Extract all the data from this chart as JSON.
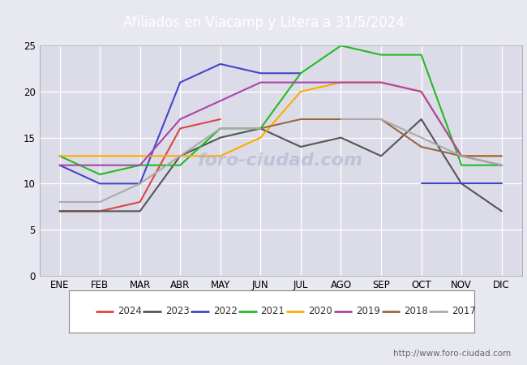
{
  "title": "Afiliados en Viacamp y Litera a 31/5/2024",
  "months": [
    "ENE",
    "FEB",
    "MAR",
    "ABR",
    "MAY",
    "JUN",
    "JUL",
    "AGO",
    "SEP",
    "OCT",
    "NOV",
    "DIC"
  ],
  "ylim": [
    0,
    25
  ],
  "yticks": [
    0,
    5,
    10,
    15,
    20,
    25
  ],
  "series": {
    "2024": {
      "color": "#dd4444",
      "data": [
        7,
        7,
        8,
        16,
        17,
        null,
        null,
        null,
        null,
        null,
        null,
        null
      ]
    },
    "2023": {
      "color": "#555555",
      "data": [
        7,
        7,
        7,
        13,
        15,
        16,
        14,
        15,
        13,
        17,
        10,
        7
      ]
    },
    "2022": {
      "color": "#4444cc",
      "data": [
        12,
        10,
        10,
        21,
        23,
        22,
        22,
        null,
        null,
        10,
        10,
        10
      ]
    },
    "2021": {
      "color": "#22bb22",
      "data": [
        13,
        11,
        12,
        12,
        16,
        16,
        22,
        25,
        24,
        24,
        12,
        12
      ]
    },
    "2020": {
      "color": "#ffaa00",
      "data": [
        13,
        13,
        13,
        13,
        13,
        15,
        20,
        21,
        21,
        20,
        13,
        13
      ]
    },
    "2019": {
      "color": "#aa44aa",
      "data": [
        12,
        12,
        12,
        17,
        19,
        21,
        21,
        21,
        21,
        20,
        13,
        12
      ]
    },
    "2018": {
      "color": "#996644",
      "data": [
        null,
        null,
        null,
        null,
        null,
        16,
        17,
        17,
        17,
        14,
        13,
        13
      ]
    },
    "2017": {
      "color": "#aaaaaa",
      "data": [
        8,
        8,
        10,
        13,
        16,
        16,
        null,
        17,
        17,
        15,
        13,
        12
      ]
    }
  },
  "legend_order": [
    "2024",
    "2023",
    "2022",
    "2021",
    "2020",
    "2019",
    "2018",
    "2017"
  ],
  "header_color": "#5577bb",
  "bg_color": "#e8e8f0",
  "plot_bg": "#dcdce8",
  "grid_color": "#ffffff",
  "footer_url": "http://www.foro-ciudad.com"
}
